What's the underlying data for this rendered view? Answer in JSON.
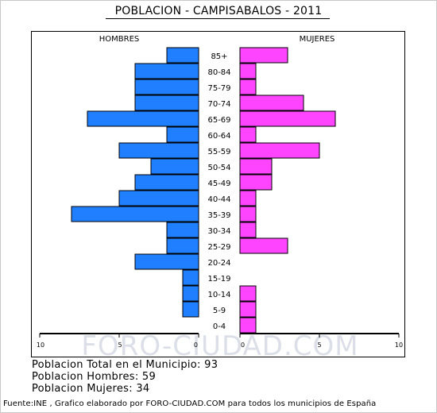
{
  "title": "POBLACION - CAMPISABALOS - 2011",
  "watermark": "FORO-CIUDAD.COM",
  "chart_data": {
    "type": "bar",
    "orientation": "horizontal-pyramid",
    "categories": [
      "85+",
      "80-84",
      "75-79",
      "70-74",
      "65-69",
      "60-64",
      "55-59",
      "50-54",
      "45-49",
      "40-44",
      "35-39",
      "30-34",
      "25-29",
      "20-24",
      "15-19",
      "10-14",
      "5-9",
      "0-4"
    ],
    "series": [
      {
        "name": "HOMBRES",
        "color": "#1f7fff",
        "values": [
          2,
          4,
          4,
          4,
          7,
          2,
          5,
          3,
          4,
          5,
          8,
          2,
          2,
          4,
          1,
          1,
          1,
          0
        ]
      },
      {
        "name": "MUJERES",
        "color": "#ff44ff",
        "values": [
          3,
          1,
          1,
          4,
          6,
          1,
          5,
          2,
          2,
          1,
          1,
          1,
          3,
          0,
          0,
          1,
          1,
          1
        ]
      }
    ],
    "xlim": [
      0,
      10
    ],
    "left_ticks": [
      "10",
      "5",
      "0"
    ],
    "right_ticks": [
      "0",
      "5",
      "10"
    ]
  },
  "stats": {
    "total": "Poblacion Total en el Municipio: 93",
    "hombres": "Poblacion Hombres: 59",
    "mujeres": "Poblacion Mujeres: 34"
  },
  "footer": "Fuente:INE , Grafico elaborado por FORO-CIUDAD.COM para todos los municipios de España"
}
